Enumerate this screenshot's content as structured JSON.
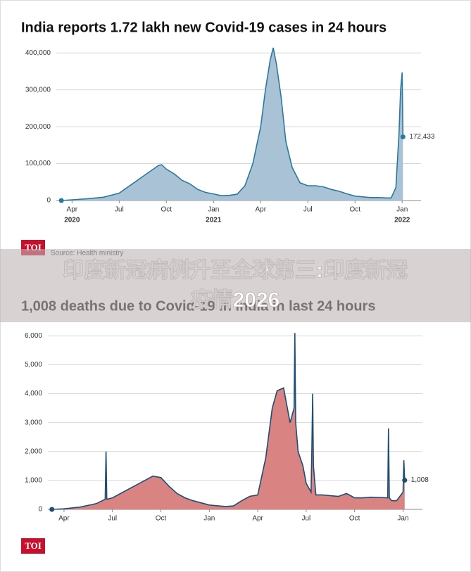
{
  "chart_data": [
    {
      "type": "area",
      "title": "India reports 1.72 lakh new Covid-19 cases in 24 hours",
      "x": [
        -0.68,
        0,
        1,
        2,
        3,
        4,
        4.5,
        5,
        5.5,
        5.7,
        6,
        6.5,
        7,
        7.5,
        8,
        8.5,
        9,
        9.5,
        10,
        10.5,
        11,
        11.5,
        12,
        12.3,
        12.6,
        12.8,
        13,
        13.3,
        13.6,
        14,
        14.5,
        15,
        15.5,
        16,
        16.5,
        17,
        17.5,
        18,
        18.5,
        19,
        19.5,
        20,
        20.3,
        20.6,
        20.8,
        20.9,
        21.0,
        21.05
      ],
      "series": [
        {
          "name": "New cases",
          "color": "#2b7a9e",
          "fill": "#a9c2d5",
          "values": [
            0,
            2000,
            5000,
            9000,
            20000,
            50000,
            65000,
            80000,
            95000,
            97000,
            85000,
            72000,
            55000,
            45000,
            30000,
            22000,
            18000,
            13000,
            14000,
            17000,
            40000,
            100000,
            200000,
            300000,
            380000,
            414000,
            370000,
            280000,
            160000,
            90000,
            48000,
            40000,
            40000,
            37000,
            30000,
            25000,
            18000,
            12000,
            10000,
            8000,
            8000,
            7000,
            7000,
            35000,
            180000,
            300000,
            347000,
            172433
          ],
          "end_label": "172,433"
        }
      ],
      "xlim": [
        -1,
        22.2
      ],
      "ylim": [
        0,
        410000
      ],
      "xticks": [
        {
          "value": 0,
          "label": "Apr"
        },
        {
          "value": 3,
          "label": "Jul"
        },
        {
          "value": 6,
          "label": "Oct"
        },
        {
          "value": 9,
          "label": "Jan"
        },
        {
          "value": 12,
          "label": "Apr"
        },
        {
          "value": 15,
          "label": "Jul"
        },
        {
          "value": 18,
          "label": "Oct"
        },
        {
          "value": 21,
          "label": "Jan"
        }
      ],
      "x_year_labels": [
        {
          "value": 0,
          "label": "2020"
        },
        {
          "value": 9,
          "label": "2021"
        },
        {
          "value": 21,
          "label": "2022"
        }
      ],
      "yticks": [
        0,
        {
          "value": 100000,
          "label": "100,000"
        },
        {
          "value": 200000,
          "label": "200,000"
        },
        {
          "value": 300000,
          "label": "300,000"
        },
        {
          "value": 400000,
          "label": "400,000"
        }
      ],
      "grid": true,
      "logo": "TOI",
      "source": "Source: Health ministry"
    },
    {
      "type": "area",
      "title": "1,008 deaths due to Covid-19 in India in last 24 hours",
      "x": [
        -0.75,
        0,
        1,
        2,
        2.55,
        2.6,
        2.65,
        3,
        4,
        5,
        5.5,
        6,
        6.5,
        7,
        7.5,
        8,
        9,
        10,
        10.5,
        11,
        11.5,
        12,
        12.5,
        12.9,
        13.2,
        13.6,
        14,
        14.25,
        14.3,
        14.35,
        14.5,
        14.8,
        15,
        15.3,
        15.35,
        15.4,
        15.45,
        15.6,
        16,
        17,
        17.5,
        18,
        18.5,
        19,
        20.05,
        20.1,
        20.15,
        20.3,
        20.6,
        21,
        21.05,
        21.1
      ],
      "series": [
        {
          "name": "Deaths",
          "color": "#1d4e73",
          "fill": "#d98383",
          "values": [
            0,
            20,
            80,
            200,
            350,
            2000,
            350,
            400,
            700,
            1000,
            1150,
            1100,
            800,
            550,
            400,
            300,
            150,
            100,
            120,
            300,
            450,
            500,
            1800,
            3500,
            4100,
            4200,
            3000,
            3500,
            6100,
            3000,
            2000,
            1500,
            900,
            600,
            2000,
            4000,
            1500,
            500,
            500,
            450,
            550,
            400,
            400,
            420,
            400,
            2800,
            400,
            300,
            300,
            600,
            1700,
            1008
          ],
          "end_label": "1,008"
        }
      ],
      "xlim": [
        -1,
        22.2
      ],
      "ylim": [
        0,
        6300
      ],
      "xticks": [
        {
          "value": 0,
          "label": "Apr"
        },
        {
          "value": 3,
          "label": "Jul"
        },
        {
          "value": 6,
          "label": "Oct"
        },
        {
          "value": 9,
          "label": "Jan"
        },
        {
          "value": 12,
          "label": "Apr"
        },
        {
          "value": 15,
          "label": "Jul"
        },
        {
          "value": 18,
          "label": "Oct"
        },
        {
          "value": 21,
          "label": "Jan"
        }
      ],
      "yticks": [
        0,
        {
          "value": 1000,
          "label": "1,000"
        },
        {
          "value": 2000,
          "label": "2,000"
        },
        {
          "value": 3000,
          "label": "3,000"
        },
        {
          "value": 4000,
          "label": "4,000"
        },
        {
          "value": 5000,
          "label": "5,000"
        },
        {
          "value": 6000,
          "label": "6,000"
        }
      ],
      "grid": true,
      "logo": "TOI"
    }
  ],
  "banner": {
    "line1": "印度新冠病例升至全球第三:印度新冠",
    "line2": "疫情2026"
  }
}
